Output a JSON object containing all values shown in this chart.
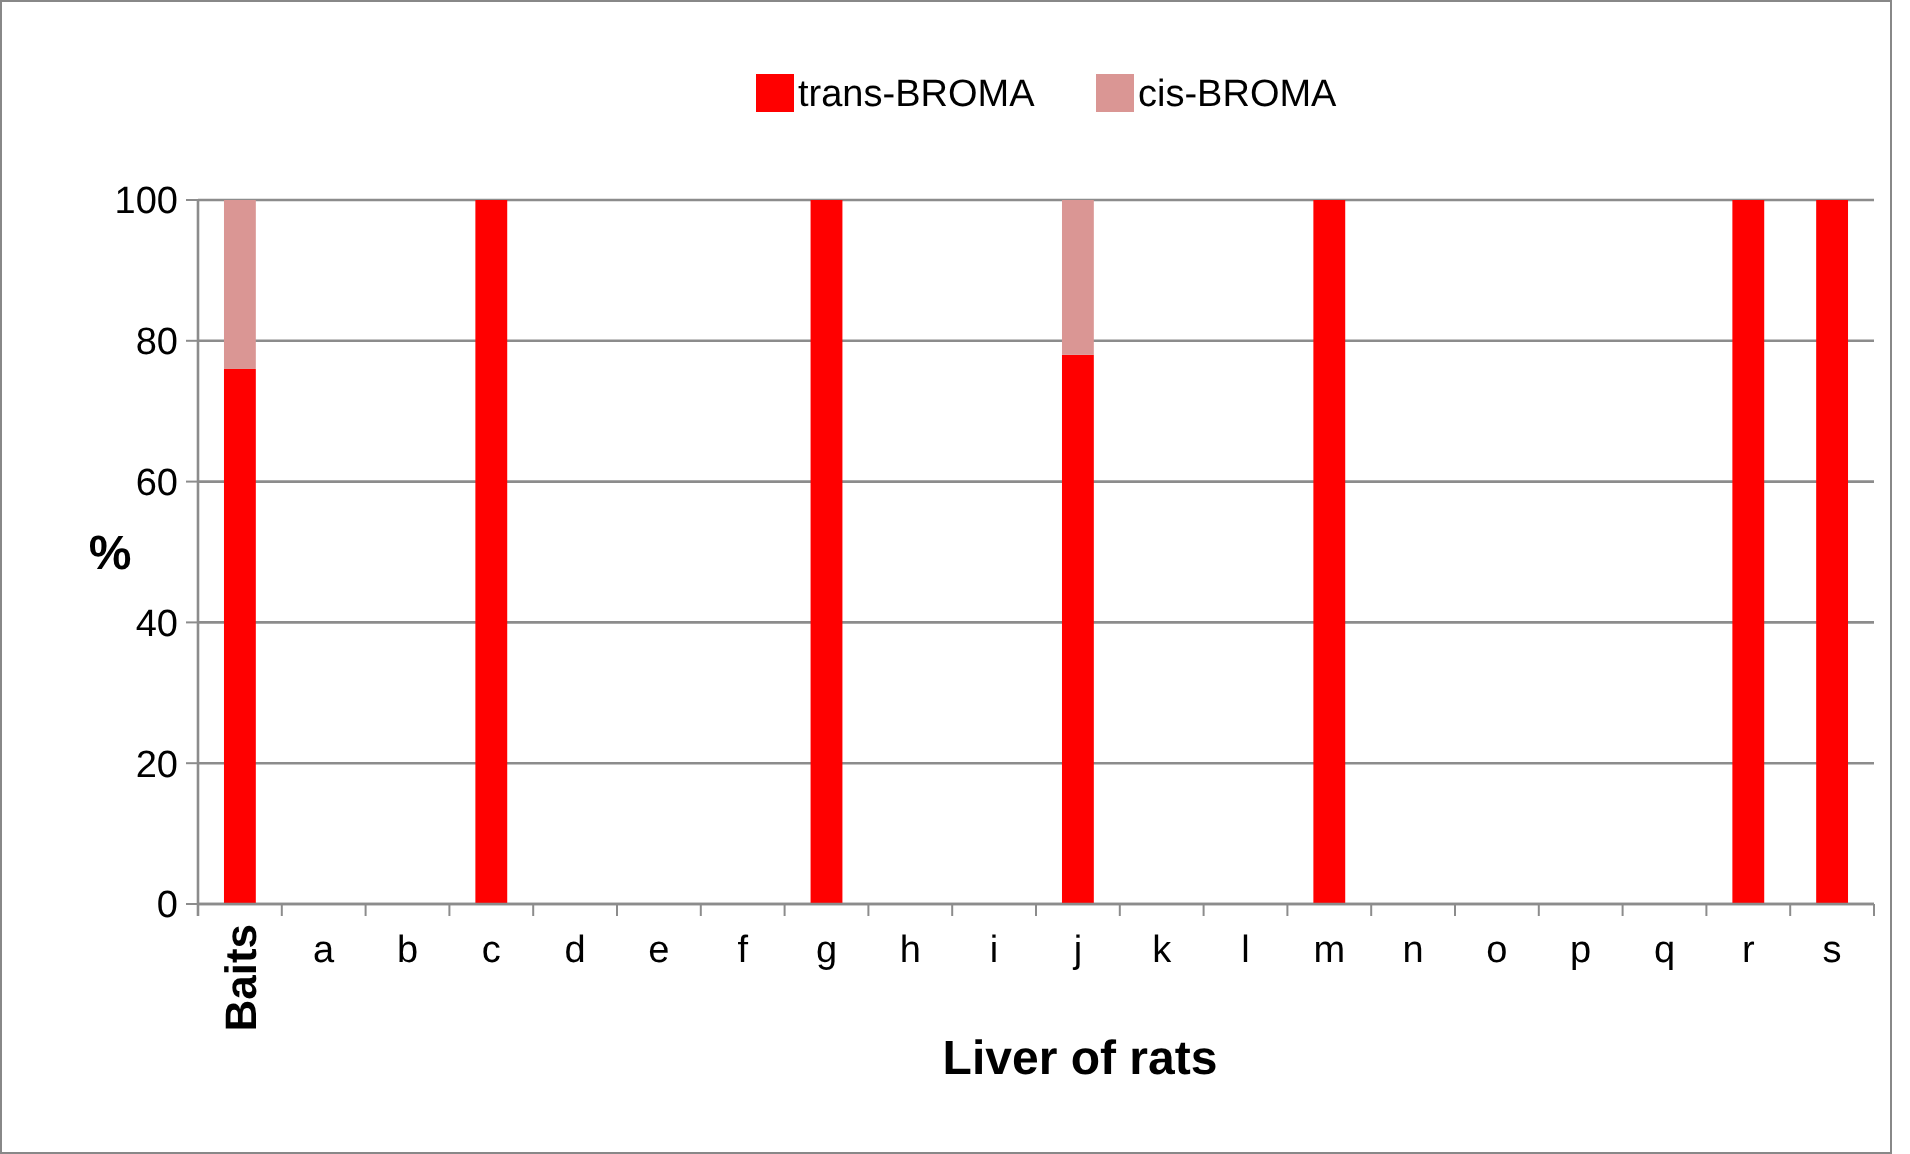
{
  "chart_data": {
    "type": "bar",
    "stacked": true,
    "xlabel": "Liver of rats",
    "ylabel": "%",
    "categories": [
      "Baits",
      "a",
      "b",
      "c",
      "d",
      "e",
      "f",
      "g",
      "h",
      "i",
      "j",
      "k",
      "l",
      "m",
      "n",
      "o",
      "p",
      "q",
      "r",
      "s"
    ],
    "series": [
      {
        "name": "trans-BROMA",
        "color": "#ff0000",
        "values": [
          76,
          0,
          0,
          100,
          0,
          0,
          0,
          100,
          0,
          0,
          78,
          0,
          0,
          100,
          0,
          0,
          0,
          0,
          100,
          100
        ]
      },
      {
        "name": "cis-BROMA",
        "color": "#da9694",
        "values": [
          24,
          0,
          0,
          0,
          0,
          0,
          0,
          0,
          0,
          0,
          22,
          0,
          0,
          0,
          0,
          0,
          0,
          0,
          0,
          0
        ]
      }
    ],
    "ylim": [
      0,
      100
    ],
    "yticks": [
      0,
      20,
      40,
      60,
      80,
      100
    ],
    "grid": "y",
    "legend": "top"
  }
}
